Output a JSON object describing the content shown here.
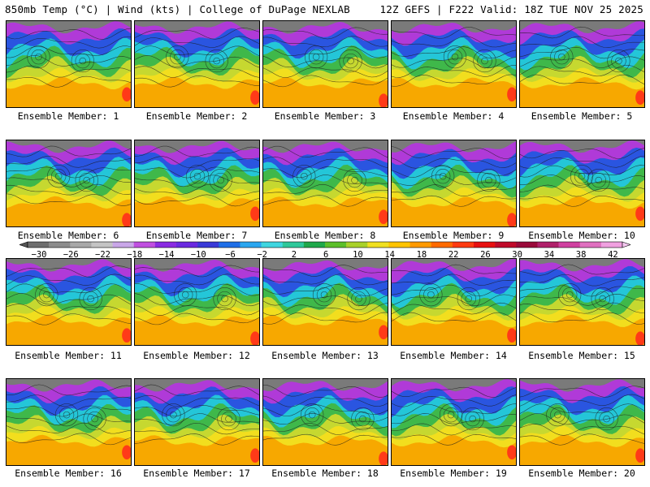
{
  "header": {
    "left": "850mb Temp (°C) | Wind (kts) | College of DuPage NEXLAB",
    "right": "12Z GEFS | F222 Valid: 18Z TUE NOV 25 2025"
  },
  "members": [
    "Ensemble Member: 1",
    "Ensemble Member: 2",
    "Ensemble Member: 3",
    "Ensemble Member: 4",
    "Ensemble Member: 5",
    "Ensemble Member: 6",
    "Ensemble Member: 7",
    "Ensemble Member: 8",
    "Ensemble Member: 9",
    "Ensemble Member: 10",
    "Ensemble Member: 11",
    "Ensemble Member: 12",
    "Ensemble Member: 13",
    "Ensemble Member: 14",
    "Ensemble Member: 15",
    "Ensemble Member: 16",
    "Ensemble Member: 17",
    "Ensemble Member: 18",
    "Ensemble Member: 19",
    "Ensemble Member: 20"
  ],
  "colorbar": {
    "labels": [
      "−30",
      "−26",
      "−22",
      "−18",
      "−14",
      "−10",
      "−6",
      "−2",
      "2",
      "6",
      "10",
      "14",
      "18",
      "22",
      "26",
      "30",
      "34",
      "38",
      "42"
    ],
    "colors": [
      "#6e6e6e",
      "#8c8c8c",
      "#a8a8a8",
      "#c4c4c4",
      "#c9a6e8",
      "#c04fe0",
      "#8a2be2",
      "#6a2ae0",
      "#3a3ad8",
      "#1f6fe8",
      "#2aa6f0",
      "#3fd6e0",
      "#2ec89a",
      "#1fa84a",
      "#5cbf2a",
      "#a8d12a",
      "#f0e020",
      "#ffc400",
      "#ff9a00",
      "#ff6a00",
      "#ff3a10",
      "#e81010",
      "#c00a2a",
      "#9a0a3a",
      "#b0206a",
      "#d040a0",
      "#e070c0",
      "#f0a0e0"
    ]
  },
  "map_colors": {
    "cold_gray": "#7a7a7a",
    "purple": "#b03ad8",
    "blue": "#2a55e0",
    "cyan": "#24c6d8",
    "green": "#3fb84a",
    "yellow_green": "#c6d830",
    "yellow": "#f2de1e",
    "orange": "#f7a800",
    "red": "#ff3a18"
  }
}
